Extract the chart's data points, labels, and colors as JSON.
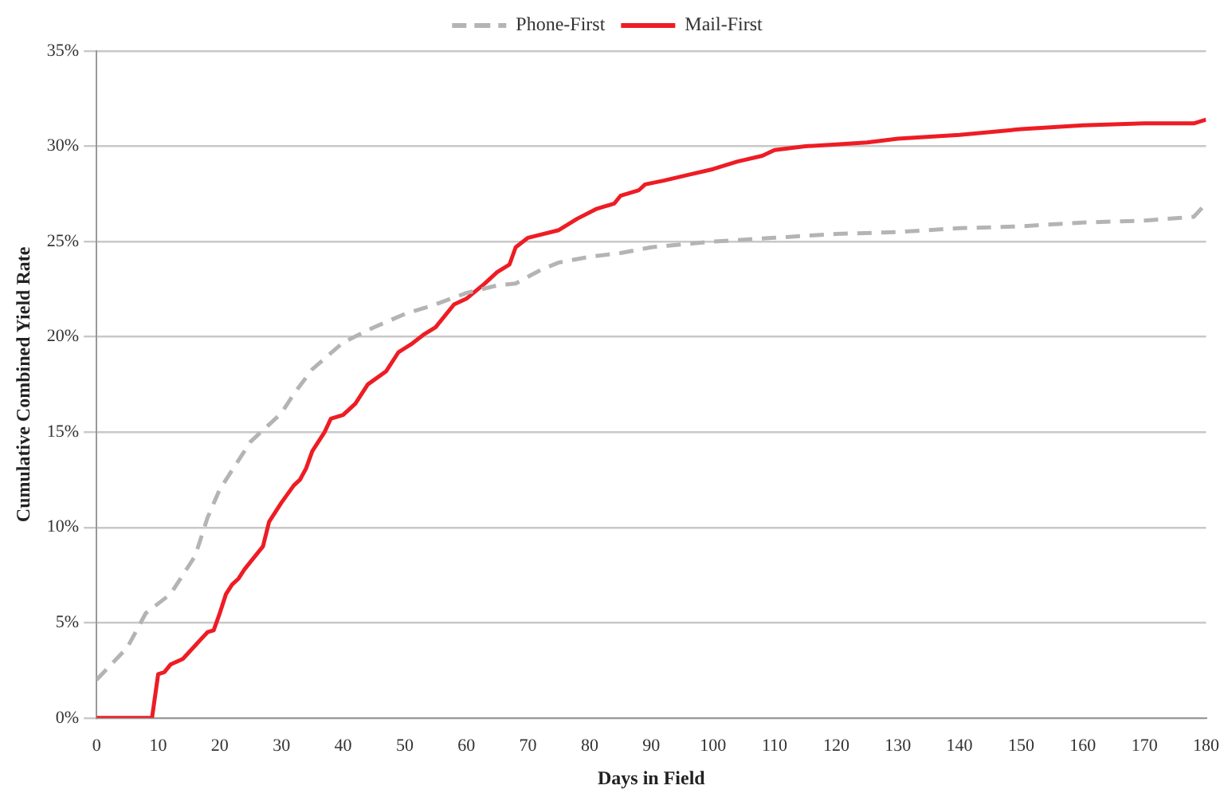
{
  "chart_data": {
    "type": "line",
    "xlabel": "Days in Field",
    "ylabel": "Cumulative Combined Yield Rate",
    "xlim": [
      0,
      180
    ],
    "xticks": [
      0,
      10,
      20,
      30,
      40,
      50,
      60,
      70,
      80,
      90,
      100,
      110,
      120,
      130,
      140,
      150,
      160,
      170,
      180
    ],
    "ylim": [
      0,
      35
    ],
    "yticks": [
      {
        "value": 0,
        "label": "0%"
      },
      {
        "value": 5,
        "label": "5%"
      },
      {
        "value": 10,
        "label": "10%"
      },
      {
        "value": 15,
        "label": "15%"
      },
      {
        "value": 20,
        "label": "20%"
      },
      {
        "value": 25,
        "label": "25%"
      },
      {
        "value": 30,
        "label": "30%"
      },
      {
        "value": 35,
        "label": "35%"
      }
    ],
    "grid": "y",
    "legend": "top",
    "marker": "none",
    "series": [
      {
        "name": "Phone-First",
        "color": "#b4b4b4",
        "line_style": "dashed",
        "x": [
          0,
          5,
          8,
          12,
          16,
          18,
          20,
          25,
          30,
          32,
          35,
          40,
          45,
          50,
          55,
          60,
          65,
          68,
          72,
          75,
          80,
          85,
          90,
          100,
          110,
          120,
          130,
          140,
          150,
          160,
          170,
          178,
          180
        ],
        "values": [
          2,
          3.7,
          5.5,
          6.5,
          8.5,
          10.5,
          12,
          14.5,
          16,
          17,
          18.3,
          19.7,
          20.5,
          21.2,
          21.7,
          22.3,
          22.7,
          22.8,
          23.5,
          23.9,
          24.2,
          24.4,
          24.7,
          25,
          25.2,
          25.4,
          25.5,
          25.7,
          25.8,
          26,
          26.1,
          26.3,
          27
        ]
      },
      {
        "name": "Mail-First",
        "color": "#ee1c24",
        "line_style": "solid",
        "x": [
          0,
          9,
          10,
          11,
          12,
          14,
          16,
          18,
          19,
          20,
          21,
          22,
          23,
          24,
          26,
          27,
          28,
          30,
          32,
          33,
          34,
          35,
          37,
          38,
          40,
          42,
          44,
          47,
          49,
          51,
          53,
          55,
          58,
          60,
          63,
          65,
          67,
          68,
          70,
          75,
          78,
          81,
          84,
          85,
          88,
          89,
          92,
          96,
          100,
          104,
          108,
          110,
          115,
          120,
          125,
          130,
          140,
          150,
          160,
          170,
          178,
          180
        ],
        "values": [
          0,
          0,
          2.3,
          2.4,
          2.8,
          3.1,
          3.8,
          4.5,
          4.6,
          5.5,
          6.5,
          7,
          7.3,
          7.8,
          8.6,
          9,
          10.3,
          11.3,
          12.2,
          12.5,
          13.1,
          14,
          15,
          15.7,
          15.9,
          16.5,
          17.5,
          18.2,
          19.2,
          19.6,
          20.1,
          20.5,
          21.7,
          22,
          22.8,
          23.4,
          23.8,
          24.7,
          25.2,
          25.6,
          26.2,
          26.7,
          27,
          27.4,
          27.7,
          28,
          28.2,
          28.5,
          28.8,
          29.2,
          29.5,
          29.8,
          30,
          30.1,
          30.2,
          30.4,
          30.6,
          30.9,
          31.1,
          31.2,
          31.2,
          31.4
        ]
      }
    ]
  }
}
